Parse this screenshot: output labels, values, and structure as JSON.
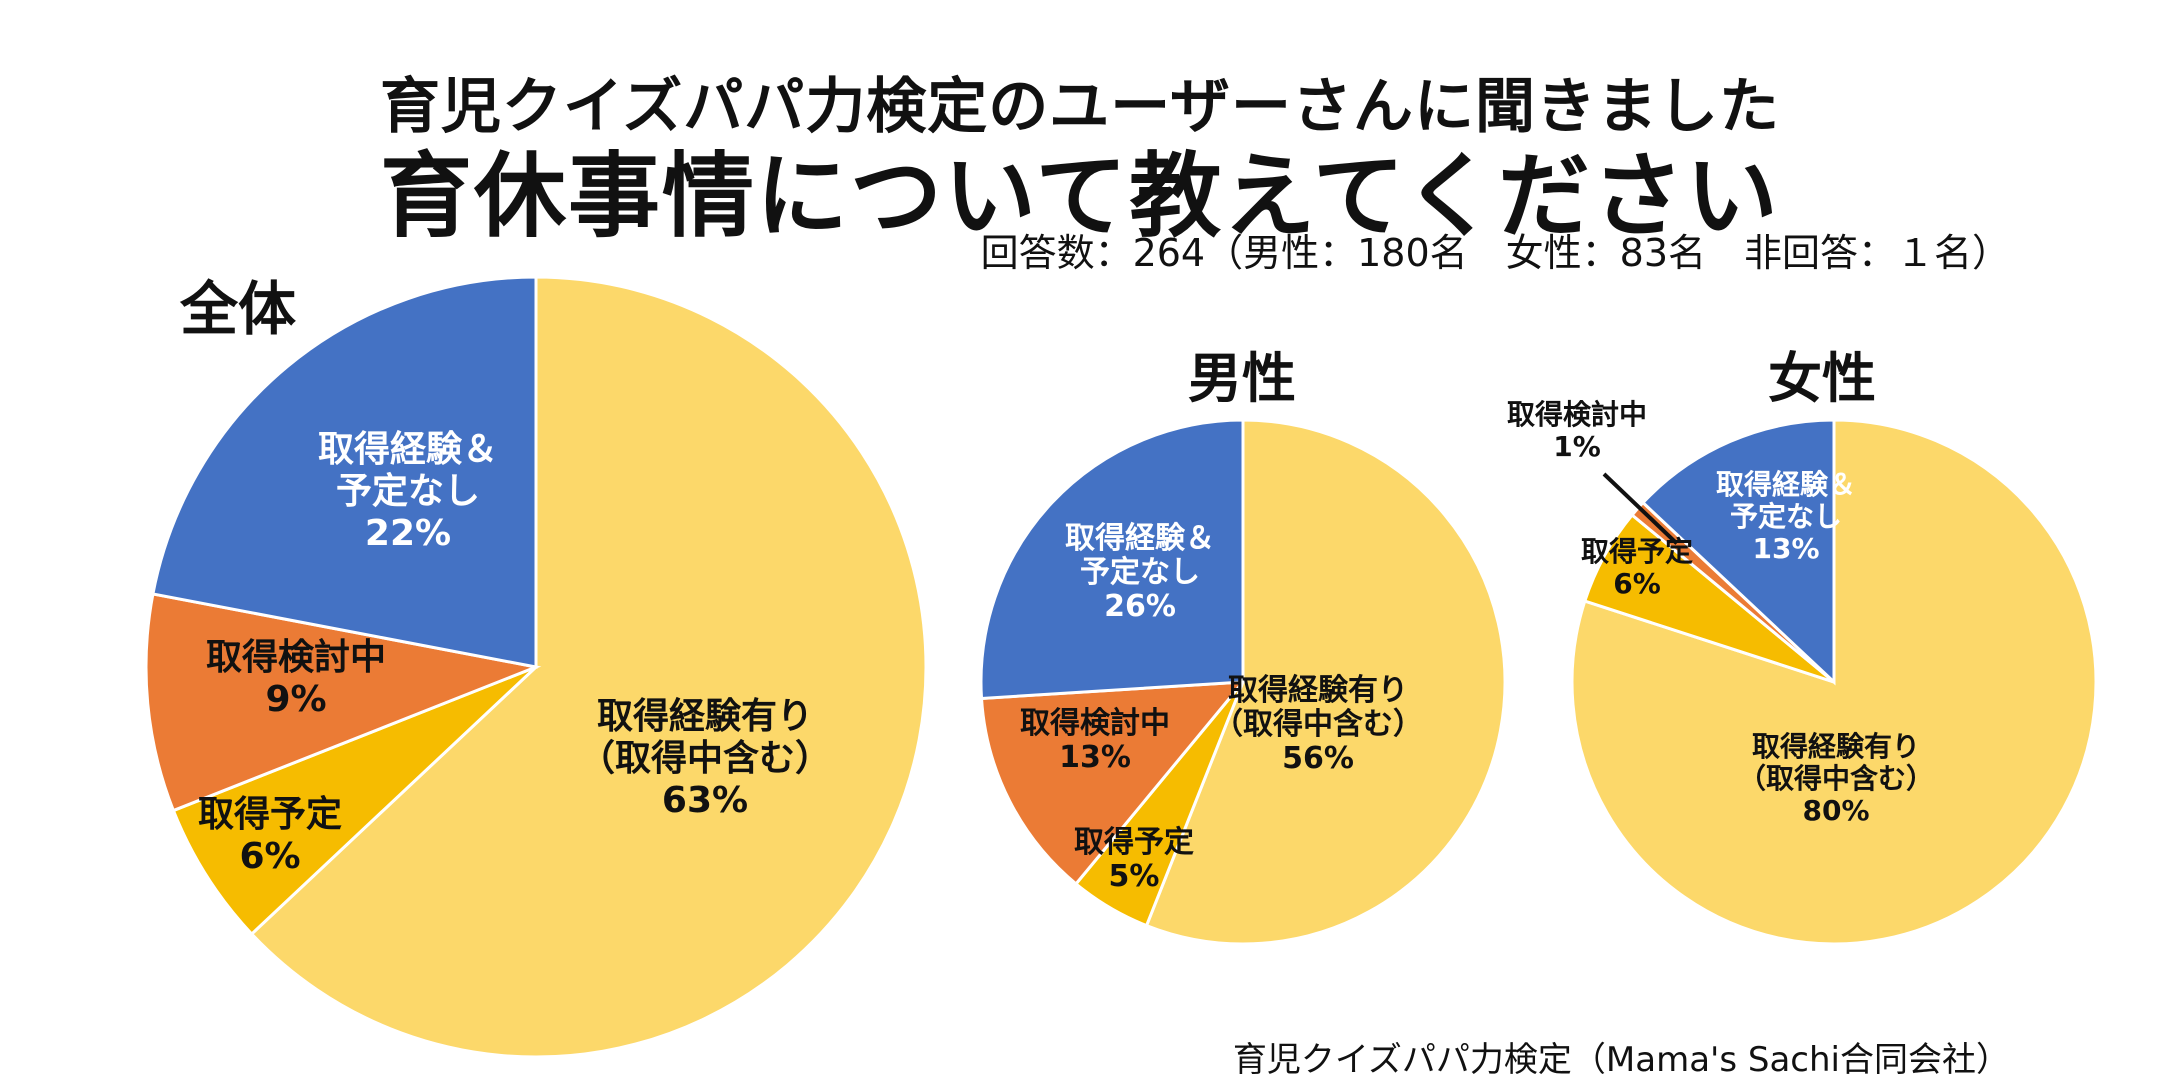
{
  "header": {
    "headline": "育児クイズパパ力検定のユーザーさんに聞きました",
    "subheadline": "育休事情について教えてください",
    "counts": "回答数：264（男性：180名　女性：83名　非回答：１名）"
  },
  "credit": "育児クイズパパ力検定（Mama's Sachi合同会社）",
  "colors": {
    "yellow": "#FCD86A",
    "gold": "#F6BC00",
    "orange": "#EB7B35",
    "blue": "#4472C4",
    "label_dark": "#111111",
    "label_light": "#ffffff"
  },
  "chart_data": [
    {
      "type": "pie",
      "title": "全体",
      "slices": [
        {
          "name": "取得経験有り（取得中含む）",
          "value": 63,
          "label_lines": [
            "取得経験有り",
            "（取得中含む）",
            "63%"
          ],
          "color": "yellow"
        },
        {
          "name": "取得予定",
          "value": 6,
          "label_lines": [
            "取得予定",
            "6%"
          ],
          "color": "gold"
        },
        {
          "name": "取得検討中",
          "value": 9,
          "label_lines": [
            "取得検討中",
            "9%"
          ],
          "color": "orange"
        },
        {
          "name": "取得経験＆予定なし",
          "value": 22,
          "label_lines": [
            "取得経験＆",
            "予定なし",
            "22%"
          ],
          "color": "blue"
        }
      ]
    },
    {
      "type": "pie",
      "title": "男性",
      "slices": [
        {
          "name": "取得経験有り（取得中含む）",
          "value": 56,
          "label_lines": [
            "取得経験有り",
            "（取得中含む）",
            "56%"
          ],
          "color": "yellow"
        },
        {
          "name": "取得予定",
          "value": 5,
          "label_lines": [
            "取得予定",
            "5%"
          ],
          "color": "gold"
        },
        {
          "name": "取得検討中",
          "value": 13,
          "label_lines": [
            "取得検討中",
            "13%"
          ],
          "color": "orange"
        },
        {
          "name": "取得経験＆予定なし",
          "value": 26,
          "label_lines": [
            "取得経験＆",
            "予定なし",
            "26%"
          ],
          "color": "blue"
        }
      ]
    },
    {
      "type": "pie",
      "title": "女性",
      "slices": [
        {
          "name": "取得経験有り（取得中含む）",
          "value": 80,
          "label_lines": [
            "取得経験有り",
            "（取得中含む）",
            "80%"
          ],
          "color": "yellow"
        },
        {
          "name": "取得予定",
          "value": 6,
          "label_lines": [
            "取得予定",
            "6%"
          ],
          "color": "gold"
        },
        {
          "name": "取得検討中",
          "value": 1,
          "label_lines": [
            "取得検討中",
            "1%"
          ],
          "color": "orange"
        },
        {
          "name": "取得経験＆予定なし",
          "value": 13,
          "label_lines": [
            "取得経験＆",
            "予定なし",
            "13%"
          ],
          "color": "blue"
        }
      ]
    }
  ]
}
